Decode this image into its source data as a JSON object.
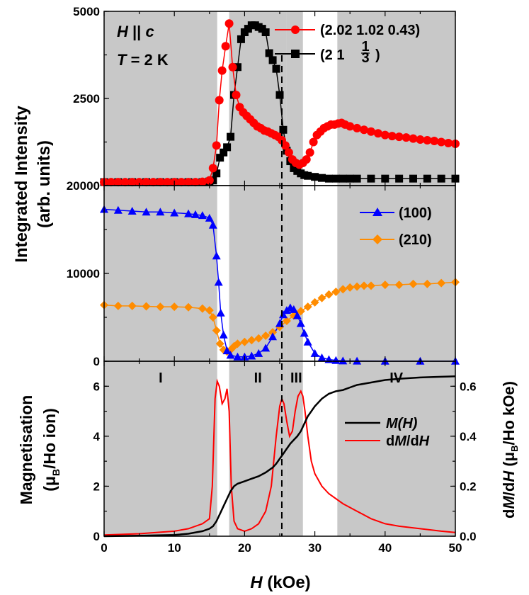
{
  "chart_data": {
    "type": "line",
    "xlabel_var": "H",
    "xlabel_unit": "(kOe)",
    "xticks": [
      "0",
      "10",
      "20",
      "30",
      "40",
      "50"
    ],
    "xlim": [
      0,
      50
    ],
    "phase_regions": [
      {
        "label": "I",
        "from": 0,
        "to": 16.1
      },
      {
        "label": "II",
        "from": 17.8,
        "to": 26.0
      },
      {
        "label": "III",
        "from": 26.0,
        "to": 28.3
      },
      {
        "label": "IV",
        "from": 33.2,
        "to": 50
      }
    ],
    "dashed_line_H": 25.3,
    "shared_ylabel_line1": "Integrated Intensity",
    "shared_ylabel_line2": "(arb. units)",
    "panels": [
      {
        "id": "top",
        "ylim": [
          0,
          5000
        ],
        "yticks": [
          "0",
          "2500",
          "5000"
        ],
        "annotation_line1_var": "H",
        "annotation_line1_rest": " || ",
        "annotation_line1_var2": "c",
        "annotation_line2_var": "T",
        "annotation_line2_rest": " = 2 K",
        "series": [
          {
            "name": "(2.02 1.02 0.43)",
            "color": "#ff0000",
            "marker": "circle",
            "x": [
              0,
              1,
              2,
              3,
              4,
              5,
              6,
              7,
              8,
              9,
              10,
              11,
              12,
              13,
              14,
              15,
              15.5,
              16,
              16.4,
              16.8,
              17.3,
              17.8,
              18.3,
              18.8,
              19.3,
              19.8,
              20.3,
              20.8,
              21.3,
              21.8,
              22.3,
              22.8,
              23.3,
              23.8,
              24.3,
              24.8,
              25.3,
              25.8,
              26.3,
              26.8,
              27.3,
              27.8,
              28.3,
              28.8,
              29.3,
              29.8,
              30.3,
              30.8,
              31.3,
              31.8,
              32.3,
              32.8,
              33.3,
              33.8,
              34.3,
              35,
              36,
              37,
              38,
              39,
              40,
              41,
              42,
              43,
              44,
              45,
              46,
              47,
              48,
              49,
              50
            ],
            "y": [
              100,
              100,
              100,
              100,
              100,
              100,
              100,
              100,
              100,
              100,
              100,
              100,
              100,
              100,
              110,
              150,
              500,
              1150,
              2450,
              3300,
              4000,
              4650,
              3400,
              2600,
              2250,
              2100,
              2000,
              1900,
              1800,
              1700,
              1650,
              1580,
              1550,
              1500,
              1450,
              1400,
              1300,
              1150,
              950,
              750,
              650,
              600,
              650,
              750,
              950,
              1250,
              1450,
              1550,
              1650,
              1700,
              1750,
              1750,
              1780,
              1800,
              1750,
              1700,
              1650,
              1600,
              1550,
              1500,
              1450,
              1420,
              1400,
              1380,
              1350,
              1320,
              1300,
              1280,
              1250,
              1220,
              1200
            ]
          },
          {
            "name_main": "(2 1 ",
            "name_frac_num": "1",
            "name_frac_den": "3",
            "name_close": ")",
            "color": "#000000",
            "marker": "square",
            "x": [
              0,
              2,
              4,
              6,
              8,
              10,
              12,
              14,
              15,
              15.5,
              16,
              16.5,
              17,
              17.5,
              18,
              18.5,
              19,
              19.5,
              20,
              20.5,
              21,
              21.5,
              22,
              22.5,
              23,
              23.5,
              24,
              24.5,
              25,
              25.5,
              26,
              26.5,
              27,
              27.5,
              28,
              28.5,
              29,
              30,
              31,
              32,
              33,
              34,
              35,
              36,
              38,
              40,
              42,
              44,
              46,
              48,
              50
            ],
            "y": [
              100,
              100,
              100,
              100,
              100,
              100,
              100,
              100,
              120,
              150,
              350,
              800,
              950,
              1100,
              1400,
              2600,
              3400,
              4200,
              4400,
              4500,
              4600,
              4600,
              4550,
              4500,
              4400,
              3800,
              3600,
              3350,
              2600,
              1600,
              1000,
              700,
              500,
              420,
              350,
              300,
              280,
              250,
              220,
              200,
              200,
              200,
              200,
              200,
              200,
              200,
              200,
              200,
              200,
              200,
              200
            ]
          }
        ]
      },
      {
        "id": "middle",
        "ylim": [
          0,
          20000
        ],
        "yticks": [
          "0",
          "10000",
          "20000"
        ],
        "series": [
          {
            "name": "(100)",
            "color": "#0000ff",
            "marker": "triangle",
            "x": [
              0,
              2,
              4,
              6,
              8,
              10,
              12,
              13,
              14,
              15,
              15.5,
              16,
              16.3,
              16.6,
              17,
              17.5,
              18,
              19,
              20,
              21,
              22,
              23,
              24,
              25,
              25.5,
              26,
              26.5,
              27,
              27.5,
              28,
              28.5,
              29,
              30,
              31,
              32,
              33,
              34,
              36,
              40,
              45,
              50
            ],
            "y": [
              17300,
              17200,
              17100,
              17000,
              17000,
              16900,
              16800,
              16700,
              16600,
              16300,
              15500,
              12000,
              9000,
              5500,
              3000,
              1200,
              700,
              500,
              500,
              600,
              900,
              1500,
              2800,
              4300,
              5300,
              5800,
              6100,
              5900,
              5200,
              4300,
              3200,
              2200,
              900,
              400,
              200,
              100,
              50,
              30,
              20,
              20,
              20
            ]
          },
          {
            "name": "(210)",
            "color": "#ff8c00",
            "marker": "diamond",
            "x": [
              0,
              2,
              4,
              6,
              8,
              10,
              12,
              14,
              15,
              15.5,
              16,
              16.5,
              17,
              17.5,
              18,
              18.5,
              19,
              20,
              21,
              22,
              23,
              24,
              25,
              26,
              27,
              28,
              29,
              30,
              31,
              32,
              33,
              34,
              35,
              36,
              37,
              38,
              40,
              42,
              44,
              46,
              48,
              50
            ],
            "y": [
              6400,
              6300,
              6300,
              6250,
              6200,
              6200,
              6150,
              6000,
              5800,
              5000,
              3500,
              2000,
              1300,
              1100,
              1300,
              1700,
              2000,
              2200,
              2400,
              2600,
              2900,
              3300,
              3900,
              4600,
              5200,
              5700,
              6200,
              6700,
              7200,
              7600,
              7900,
              8200,
              8400,
              8500,
              8600,
              8600,
              8700,
              8700,
              8800,
              8800,
              8900,
              9000
            ]
          }
        ]
      },
      {
        "id": "bottom",
        "ylabel_left_line1": "Magnetisation",
        "ylabel_left_line2_pre": "(",
        "ylabel_left_mu": "μ",
        "ylabel_left_sub": "B",
        "ylabel_left_post": "/Ho ion)",
        "ylabel_right_pre": "d",
        "ylabel_right_var1": "M",
        "ylabel_right_mid": "/d",
        "ylabel_right_var2": "H",
        "ylabel_right_paren": " (",
        "ylabel_right_mu": "μ",
        "ylabel_right_sub": "B",
        "ylabel_right_post": "/Ho kOe)",
        "ylim_left": [
          0,
          7
        ],
        "yticks_left": [
          "0",
          "2",
          "4",
          "6"
        ],
        "ylim_right": [
          0,
          0.7
        ],
        "yticks_right": [
          "0.0",
          "0.2",
          "0.4",
          "0.6"
        ],
        "series": [
          {
            "name_var": "M",
            "name_rest": "(H)",
            "color": "#000000",
            "axis": "left",
            "x": [
              0,
              5,
              10,
              12,
              14,
              15,
              15.5,
              16,
              16.5,
              17,
              17.5,
              18,
              18.5,
              19,
              20,
              21,
              22,
              23,
              24,
              24.5,
              25,
              25.5,
              26,
              26.5,
              27,
              27.5,
              28,
              28.5,
              29,
              30,
              31,
              32,
              33,
              34,
              35,
              36,
              38,
              40,
              42,
              45,
              48,
              50
            ],
            "y": [
              0,
              0.02,
              0.05,
              0.1,
              0.2,
              0.3,
              0.4,
              0.6,
              0.9,
              1.2,
              1.5,
              1.8,
              2.0,
              2.1,
              2.2,
              2.3,
              2.4,
              2.55,
              2.75,
              2.9,
              3.1,
              3.3,
              3.5,
              3.7,
              3.85,
              4.0,
              4.2,
              4.5,
              4.8,
              5.2,
              5.5,
              5.7,
              5.8,
              5.85,
              5.95,
              6.05,
              6.15,
              6.25,
              6.3,
              6.35,
              6.38,
              6.4
            ]
          },
          {
            "name_pre": "d",
            "name_var1": "M",
            "name_mid": "/d",
            "name_var2": "H",
            "color": "#ff0000",
            "axis": "right",
            "x": [
              0,
              5,
              10,
              12,
              14,
              15,
              15.4,
              15.8,
              16.1,
              16.4,
              16.8,
              17.2,
              17.5,
              17.8,
              18.1,
              18.5,
              19,
              20,
              21,
              22,
              23,
              23.8,
              24.5,
              25,
              25.3,
              25.6,
              26,
              26.4,
              26.8,
              27.2,
              27.6,
              28,
              28.3,
              28.6,
              29,
              29.5,
              30,
              31,
              32,
              34,
              36,
              38,
              40,
              42,
              45,
              48,
              50
            ],
            "y": [
              0.005,
              0.01,
              0.02,
              0.03,
              0.05,
              0.07,
              0.2,
              0.55,
              0.62,
              0.6,
              0.53,
              0.55,
              0.59,
              0.5,
              0.2,
              0.06,
              0.03,
              0.02,
              0.03,
              0.05,
              0.1,
              0.2,
              0.4,
              0.52,
              0.55,
              0.53,
              0.46,
              0.4,
              0.42,
              0.5,
              0.56,
              0.58,
              0.56,
              0.5,
              0.4,
              0.3,
              0.25,
              0.2,
              0.17,
              0.13,
              0.1,
              0.07,
              0.05,
              0.04,
              0.03,
              0.02,
              0.015
            ]
          }
        ]
      }
    ]
  }
}
